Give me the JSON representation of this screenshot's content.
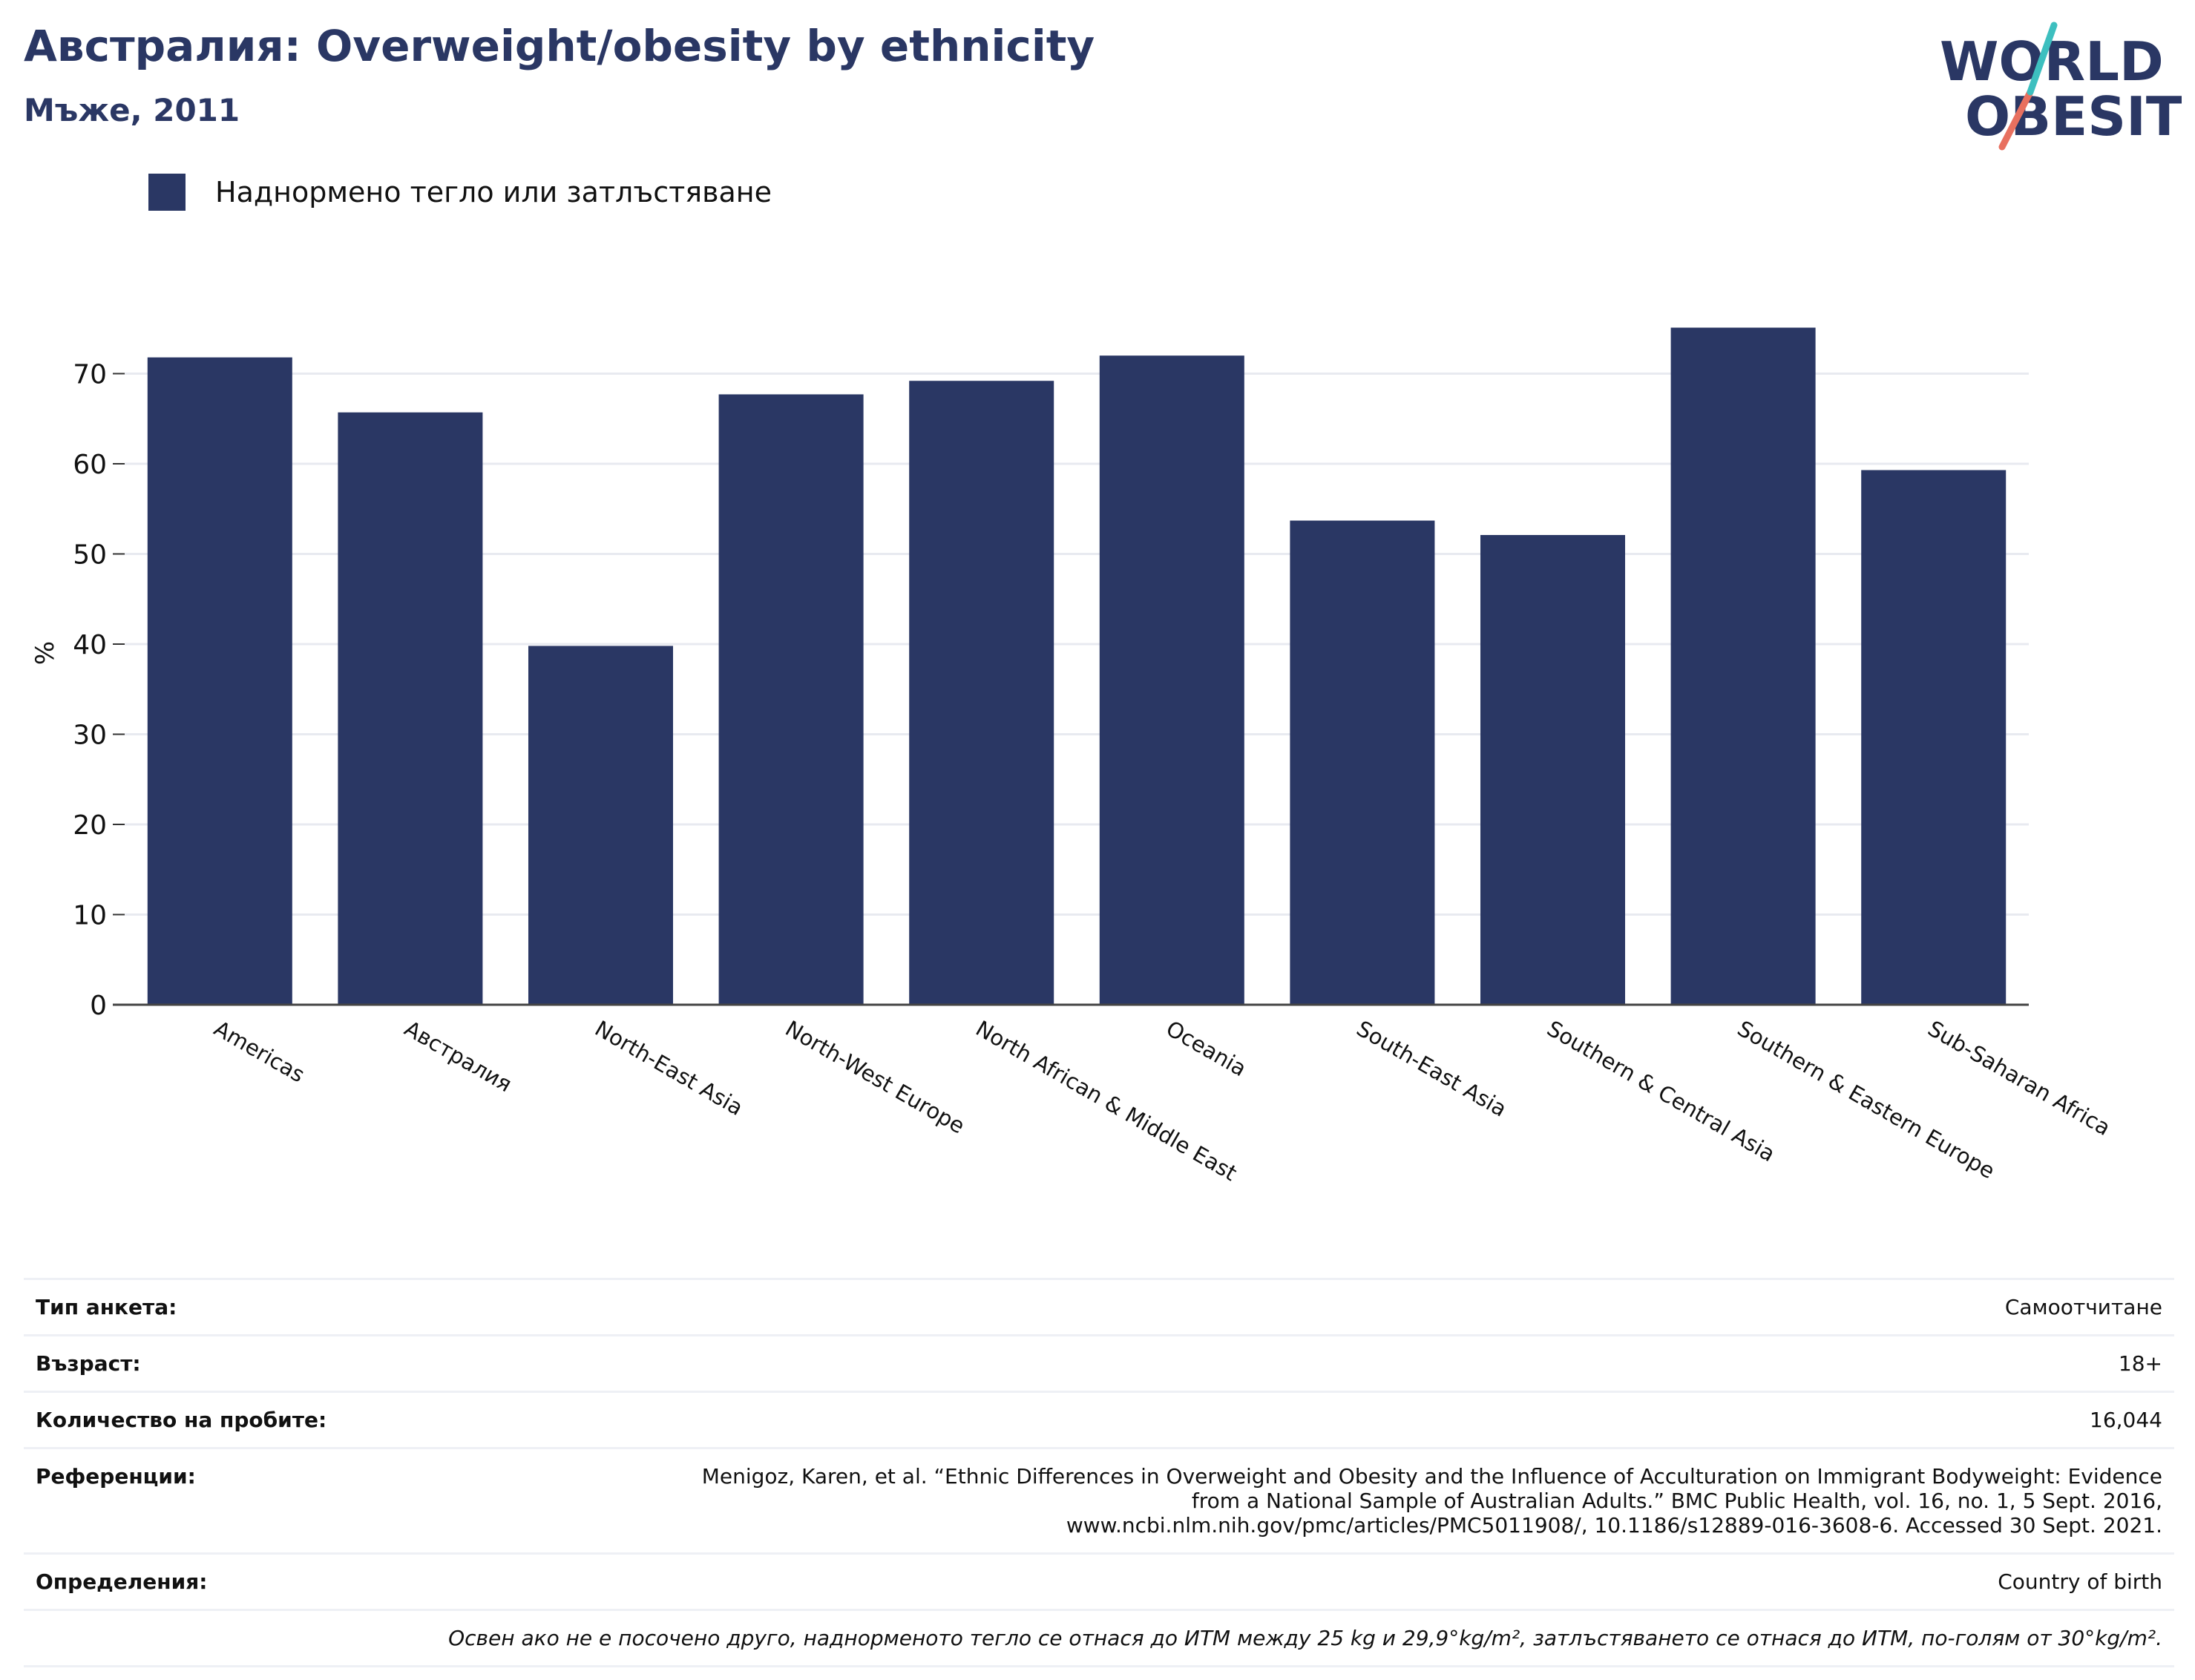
{
  "header": {
    "title": "Австралия: Overweight/obesity by ethnicity",
    "subtitle": "Мъже, 2011",
    "logo": {
      "line1": "WORLD",
      "line2": "OBESITY"
    }
  },
  "legend": {
    "label": "Наднормено тегло или затлъстяване",
    "color": "#2a3764"
  },
  "chart_data": {
    "type": "bar",
    "categories": [
      "Americas",
      "Австралия",
      "North-East Asia",
      "North-West Europe",
      "North African & Middle East",
      "Oceania",
      "South-East Asia",
      "Southern & Central Asia",
      "Southern & Eastern Europe",
      "Sub-Saharan Africa"
    ],
    "series": [
      {
        "name": "Наднормено тегло или затлъстяване",
        "values": [
          71.8,
          65.7,
          39.8,
          67.7,
          69.2,
          72.0,
          53.7,
          52.1,
          75.1,
          59.3
        ],
        "color": "#2a3764"
      }
    ],
    "ylabel": "%",
    "yticks": [
      0,
      10,
      20,
      30,
      40,
      50,
      60,
      70
    ],
    "ylim": [
      0,
      78
    ],
    "grid": true,
    "legend_position": "top-left"
  },
  "info": {
    "rows": [
      {
        "key": "Тип анкета:",
        "value": "Самоотчитане"
      },
      {
        "key": "Възраст:",
        "value": "18+"
      },
      {
        "key": "Количество на пробите:",
        "value": "16,044"
      },
      {
        "key": "Референции:",
        "value_lines": [
          "Menigoz, Karen, et al. “Ethnic Differences in Overweight and Obesity and the Influence of Acculturation on Immigrant Bodyweight: Evidence",
          "from a National Sample of Australian Adults.” BMC Public Health, vol. 16, no. 1, 5 Sept. 2016,",
          "www.ncbi.nlm.nih.gov/pmc/articles/PMC5011908/, 10.1186/s12889-016-3608-6. Accessed 30 Sept. 2021."
        ]
      },
      {
        "key": "Определения:",
        "value": "Country of birth"
      }
    ],
    "note": "Освен ако не е посочено друго, наднорменото тегло се отнася до ИТМ между 25 kg и 29,9°kg/m², затлъстяването се отнася до ИТМ, по-голям от 30°kg/m²."
  }
}
